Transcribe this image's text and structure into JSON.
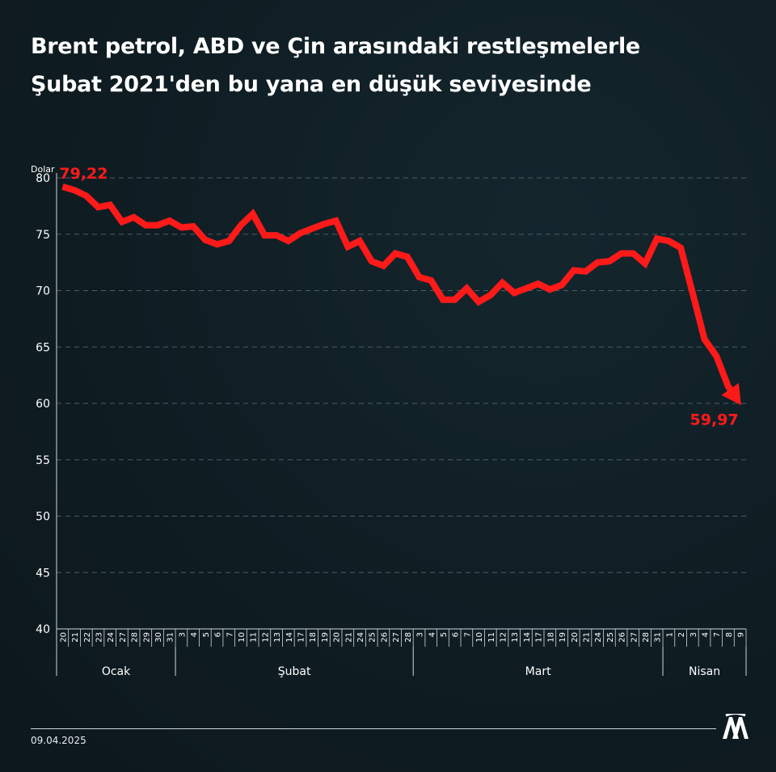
{
  "title_lines": [
    "Brent petrol, ABD ve Çin arasındaki restleşmelerle",
    "Şubat 2021'den bu yana en düşük seviyesinde"
  ],
  "date": "09.04.2025",
  "logo": "aa-logo",
  "colors": {
    "line": "#ff1a1a",
    "grid": "#4d5d64",
    "text": "#ffffff",
    "background": "#0f1d23"
  },
  "chart_data": {
    "type": "line",
    "ylabel": "Dolar",
    "ylim": [
      40,
      80
    ],
    "yticks": [
      "40",
      "45",
      "50",
      "55",
      "60",
      "65",
      "70",
      "75",
      "80"
    ],
    "grid": true,
    "x": [
      "20",
      "21",
      "22",
      "23",
      "24",
      "27",
      "28",
      "29",
      "30",
      "31",
      "3",
      "4",
      "5",
      "6",
      "7",
      "10",
      "11",
      "12",
      "13",
      "14",
      "17",
      "18",
      "19",
      "20",
      "21",
      "24",
      "25",
      "26",
      "27",
      "28",
      "3",
      "4",
      "5",
      "6",
      "7",
      "10",
      "11",
      "12",
      "13",
      "14",
      "17",
      "18",
      "19",
      "20",
      "21",
      "24",
      "25",
      "26",
      "27",
      "28",
      "31",
      "1",
      "2",
      "3",
      "4",
      "7",
      "8",
      "9"
    ],
    "months": [
      {
        "name": "Ocak",
        "start": 0,
        "end": 9
      },
      {
        "name": "Şubat",
        "start": 10,
        "end": 29
      },
      {
        "name": "Mart",
        "start": 30,
        "end": 50
      },
      {
        "name": "Nisan",
        "start": 51,
        "end": 57
      }
    ],
    "series": [
      {
        "values": [
          79.22,
          78.9,
          78.4,
          77.4,
          77.6,
          76.1,
          76.5,
          75.8,
          75.8,
          76.2,
          75.6,
          75.7,
          74.5,
          74.1,
          74.4,
          75.8,
          76.8,
          74.9,
          74.9,
          74.4,
          75.1,
          75.5,
          75.9,
          76.2,
          73.9,
          74.4,
          72.6,
          72.2,
          73.3,
          73.0,
          71.2,
          70.9,
          69.2,
          69.2,
          70.2,
          69.0,
          69.6,
          70.7,
          69.8,
          70.2,
          70.6,
          70.1,
          70.5,
          71.8,
          71.7,
          72.5,
          72.6,
          73.3,
          73.3,
          72.4,
          74.6,
          74.4,
          73.8,
          69.8,
          65.7,
          64.2,
          61.5,
          59.97
        ]
      }
    ],
    "annotations": [
      {
        "index": 0,
        "label": "79,22"
      },
      {
        "index": 57,
        "label": "59,97"
      }
    ]
  }
}
